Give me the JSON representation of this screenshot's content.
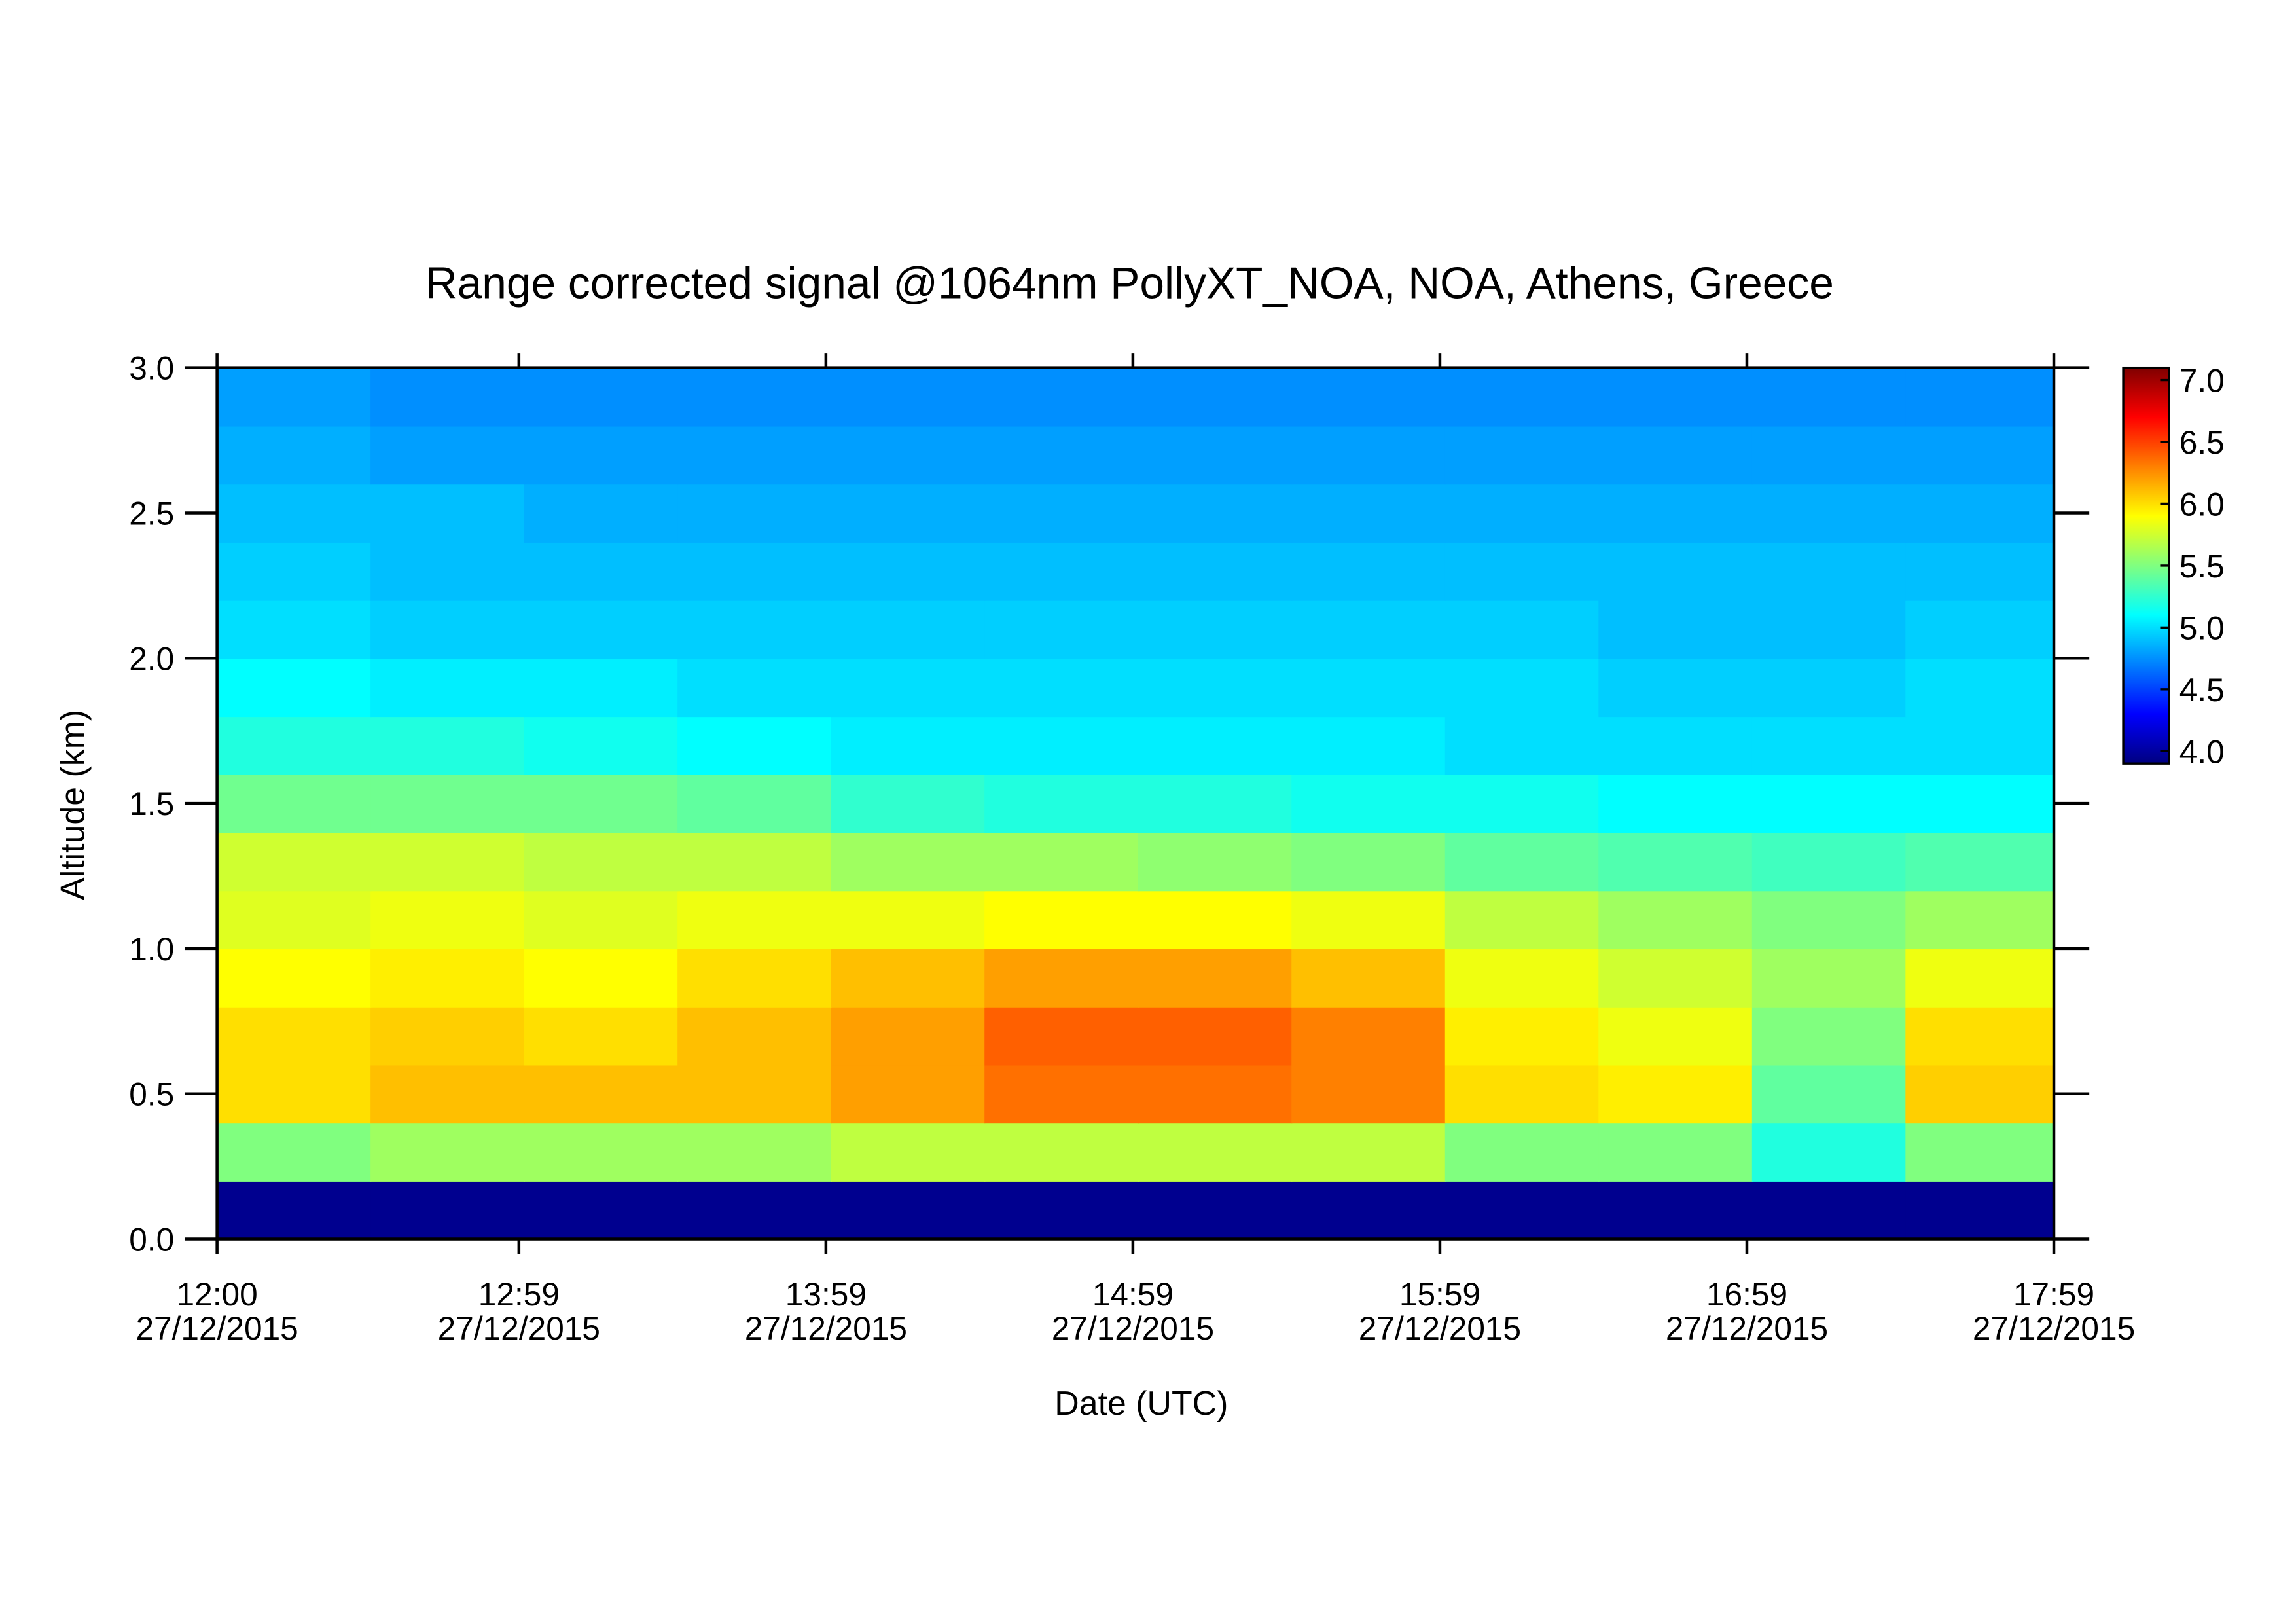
{
  "chart_data": {
    "type": "heatmap",
    "title": "Range corrected signal @1064nm  PollyXT_NOA, NOA, Athens, Greece",
    "xlabel": "Date (UTC)",
    "ylabel": "Altitude (km)",
    "colormap": "jet",
    "x": [
      "2015-12-27T12:15",
      "2015-12-27T12:45",
      "2015-12-27T13:15",
      "2015-12-27T13:45",
      "2015-12-27T14:15",
      "2015-12-27T14:45",
      "2015-12-27T15:15",
      "2015-12-27T15:45",
      "2015-12-27T16:15",
      "2015-12-27T16:45",
      "2015-12-27T17:15",
      "2015-12-27T17:45"
    ],
    "y": [
      0.1,
      0.3,
      0.5,
      0.7,
      0.9,
      1.1,
      1.3,
      1.5,
      1.7,
      1.9,
      2.1,
      2.3,
      2.5,
      2.7,
      2.9
    ],
    "values": [
      [
        3.95,
        3.95,
        3.95,
        3.95,
        3.95,
        3.95,
        3.95,
        3.95,
        3.95,
        3.95,
        3.95,
        3.95
      ],
      [
        5.5,
        5.6,
        5.6,
        5.6,
        5.7,
        5.7,
        5.7,
        5.7,
        5.5,
        5.5,
        5.2,
        5.5
      ],
      [
        6.0,
        6.1,
        6.1,
        6.1,
        6.2,
        6.35,
        6.35,
        6.3,
        6.0,
        5.95,
        5.4,
        6.05
      ],
      [
        6.0,
        6.05,
        6.0,
        6.1,
        6.2,
        6.4,
        6.4,
        6.3,
        5.95,
        5.85,
        5.5,
        6.0
      ],
      [
        5.9,
        5.95,
        5.9,
        6.0,
        6.1,
        6.2,
        6.2,
        6.1,
        5.85,
        5.75,
        5.6,
        5.85
      ],
      [
        5.8,
        5.85,
        5.8,
        5.85,
        5.85,
        5.9,
        5.9,
        5.85,
        5.7,
        5.6,
        5.5,
        5.6
      ],
      [
        5.75,
        5.75,
        5.7,
        5.7,
        5.6,
        5.6,
        5.55,
        5.5,
        5.4,
        5.35,
        5.3,
        5.35
      ],
      [
        5.45,
        5.45,
        5.45,
        5.4,
        5.25,
        5.2,
        5.2,
        5.15,
        5.15,
        5.1,
        5.1,
        5.1
      ],
      [
        5.2,
        5.2,
        5.15,
        5.1,
        5.05,
        5.05,
        5.05,
        5.05,
        5.0,
        5.0,
        5.0,
        5.0
      ],
      [
        5.1,
        5.05,
        5.05,
        5.0,
        5.0,
        5.0,
        5.0,
        5.0,
        5.0,
        4.95,
        4.95,
        5.0
      ],
      [
        5.0,
        4.95,
        4.95,
        4.95,
        4.95,
        4.95,
        4.95,
        4.95,
        4.95,
        4.9,
        4.9,
        4.95
      ],
      [
        4.95,
        4.9,
        4.9,
        4.9,
        4.9,
        4.9,
        4.9,
        4.9,
        4.9,
        4.9,
        4.9,
        4.9
      ],
      [
        4.9,
        4.9,
        4.85,
        4.85,
        4.85,
        4.85,
        4.85,
        4.85,
        4.85,
        4.85,
        4.85,
        4.85
      ],
      [
        4.85,
        4.8,
        4.8,
        4.8,
        4.8,
        4.8,
        4.8,
        4.8,
        4.8,
        4.8,
        4.8,
        4.8
      ],
      [
        4.8,
        4.75,
        4.75,
        4.75,
        4.75,
        4.75,
        4.75,
        4.75,
        4.75,
        4.75,
        4.75,
        4.75
      ]
    ],
    "xlim": [
      "2015-12-27T12:00",
      "2015-12-27T17:59"
    ],
    "xticks": [
      {
        "value": "2015-12-27T12:00",
        "label": "12:00\n27/12/2015"
      },
      {
        "value": "2015-12-27T12:59",
        "label": "12:59\n27/12/2015"
      },
      {
        "value": "2015-12-27T13:59",
        "label": "13:59\n27/12/2015"
      },
      {
        "value": "2015-12-27T14:59",
        "label": "14:59\n27/12/2015"
      },
      {
        "value": "2015-12-27T15:59",
        "label": "15:59\n27/12/2015"
      },
      {
        "value": "2015-12-27T16:59",
        "label": "16:59\n27/12/2015"
      },
      {
        "value": "2015-12-27T17:59",
        "label": "17:59\n27/12/2015"
      }
    ],
    "ylim": [
      0,
      3.0
    ],
    "yticks": [
      {
        "value": 0,
        "label": "0.0"
      },
      0.5,
      {
        "value": 1,
        "label": "1.0"
      },
      1.5,
      {
        "value": 2,
        "label": "2.0"
      },
      2.5,
      {
        "value": 3,
        "label": "3.0"
      }
    ],
    "clim": [
      3.9,
      7.1
    ],
    "cticks": [
      {
        "value": 4,
        "label": "4.0"
      },
      4.5,
      {
        "value": 5,
        "label": "5.0"
      },
      5.5,
      {
        "value": 6,
        "label": "6.0"
      },
      6.5,
      {
        "value": 7,
        "label": "7.0"
      }
    ]
  }
}
